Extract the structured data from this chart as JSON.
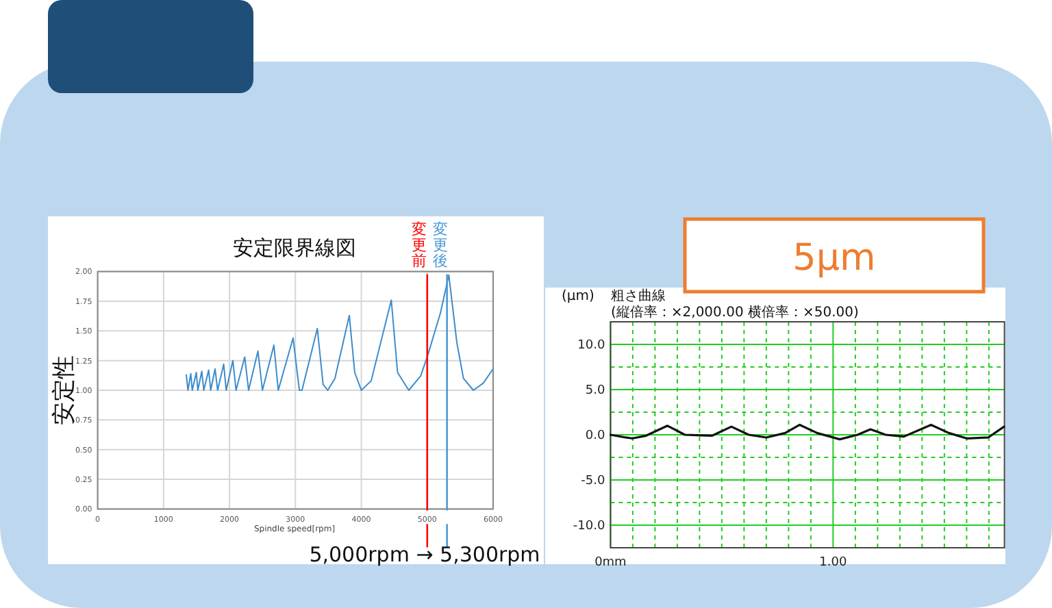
{
  "chart_data": [
    {
      "type": "line",
      "title": "安定限界線図",
      "xlabel": "Spindle speed[rpm]",
      "ylabel": "安定性",
      "x": [
        1344,
        1370,
        1413,
        1435,
        1497,
        1520,
        1580,
        1610,
        1684,
        1715,
        1781,
        1820,
        1912,
        1950,
        2051,
        2100,
        2231,
        2290,
        2432,
        2500,
        2674,
        2740,
        2965,
        3060,
        3100,
        3333,
        3420,
        3490,
        3600,
        3818,
        3900,
        4000,
        4150,
        4455,
        4550,
        4720,
        4900,
        5000,
        5200,
        5328,
        5450,
        5550,
        5700,
        5850,
        6000
      ],
      "series": [
        {
          "color": "#3d8ccc",
          "values": [
            1.13,
            1.0,
            1.14,
            1.0,
            1.15,
            1.0,
            1.16,
            1.0,
            1.17,
            1.0,
            1.18,
            1.0,
            1.22,
            1.0,
            1.25,
            1.0,
            1.28,
            1.0,
            1.33,
            1.0,
            1.38,
            1.0,
            1.44,
            1.0,
            1.0,
            1.52,
            1.05,
            1.0,
            1.1,
            1.63,
            1.15,
            1.0,
            1.08,
            1.76,
            1.15,
            1.0,
            1.12,
            1.28,
            1.65,
            1.97,
            1.4,
            1.1,
            1.0,
            1.06,
            1.18
          ]
        }
      ],
      "xlim": [
        0,
        6000
      ],
      "xticks": [
        0,
        1000,
        2000,
        3000,
        4000,
        5000,
        6000
      ],
      "ylim": [
        0,
        2
      ],
      "yticks": [
        {
          "value": 0,
          "label": "0.00"
        },
        {
          "value": 0.25,
          "label": "0.25"
        },
        {
          "value": 0.5,
          "label": "0.50"
        },
        {
          "value": 0.75,
          "label": "0.75"
        },
        {
          "value": 1,
          "label": "1.00"
        },
        {
          "value": 1.25,
          "label": "1.25"
        },
        {
          "value": 1.5,
          "label": "1.50"
        },
        {
          "value": 1.75,
          "label": "1.75"
        },
        {
          "value": 2,
          "label": "2.00"
        }
      ],
      "grid": true,
      "ref_lines": [
        {
          "axis": "x",
          "value": 5000,
          "label": "変更前",
          "color": "#ff0000"
        },
        {
          "axis": "x",
          "value": 5300,
          "label": "変更後",
          "color": "#4a9ad8"
        }
      ],
      "annotations": [
        "5,000rpm → 5,300rpm"
      ]
    },
    {
      "type": "line",
      "title": "粗さ曲線",
      "subtitle": "(縦倍率：×2,000.00 横倍率：×50.00)",
      "ylabel": "(μm)",
      "x": [
        0,
        0.068,
        0.098,
        0.16,
        0.256,
        0.334,
        0.457,
        0.543,
        0.621,
        0.7,
        0.785,
        0.85,
        0.928,
        1.03,
        1.11,
        1.168,
        1.236,
        1.318,
        1.44,
        1.52,
        1.6,
        1.697,
        1.768
      ],
      "series": [
        {
          "color": "#111111",
          "values": [
            0,
            -0.3,
            -0.4,
            -0.1,
            1.0,
            0,
            -0.1,
            0.9,
            0,
            -0.3,
            0.2,
            1.1,
            0.2,
            -0.5,
            0,
            0.6,
            0,
            -0.2,
            1.1,
            0.2,
            -0.4,
            -0.3,
            0.9
          ]
        }
      ],
      "xlim": [
        0,
        1.77
      ],
      "xticks": [
        {
          "value": 0,
          "label": "0mm"
        },
        {
          "value": 0.1,
          "label": null
        },
        {
          "value": 0.2,
          "label": null
        },
        {
          "value": 0.3,
          "label": null
        },
        {
          "value": 0.4,
          "label": null
        },
        {
          "value": 0.5,
          "label": null
        },
        {
          "value": 0.6,
          "label": null
        },
        {
          "value": 0.7,
          "label": null
        },
        {
          "value": 0.8,
          "label": null
        },
        {
          "value": 0.9,
          "label": null
        },
        {
          "value": 1,
          "label": "1.00"
        },
        {
          "value": 1.1,
          "label": null
        },
        {
          "value": 1.2,
          "label": null
        },
        {
          "value": 1.3,
          "label": null
        },
        {
          "value": 1.4,
          "label": null
        },
        {
          "value": 1.5,
          "label": null
        },
        {
          "value": 1.6,
          "label": null
        },
        {
          "value": 1.7,
          "label": null
        }
      ],
      "ylim": [
        -12.5,
        12.5
      ],
      "yticks": [
        {
          "value": -10,
          "label": "-10.0"
        },
        {
          "value": -7.5,
          "label": null
        },
        {
          "value": -5,
          "label": "-5.0"
        },
        {
          "value": -2.5,
          "label": null
        },
        {
          "value": 0,
          "label": "0.0"
        },
        {
          "value": 2.5,
          "label": null
        },
        {
          "value": 5,
          "label": "5.0"
        },
        {
          "value": 7.5,
          "label": null
        },
        {
          "value": 10,
          "label": "10.0"
        }
      ],
      "grid": true,
      "annotations": [
        "5μm"
      ]
    }
  ]
}
